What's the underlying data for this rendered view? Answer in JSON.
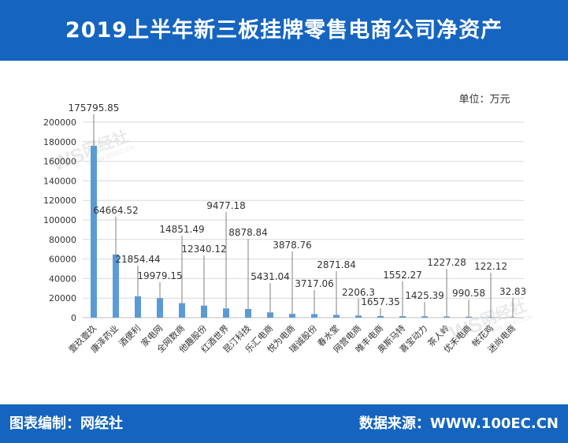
{
  "header": {
    "title": "2019上半年新三板挂牌零售电商公司净资产"
  },
  "footer": {
    "left_text": "图表编制：网经社",
    "right_text": "数据来源：WWW.100EC.CN"
  },
  "watermark": {
    "brand": "网经社",
    "url": "WWW.100EC.CN",
    "logo": "WS"
  },
  "colors": {
    "header_bg": "#1565c0",
    "bar": "#5b9bd5",
    "grid": "#d9d9d9"
  },
  "chart_data": {
    "type": "bar",
    "unit_label": "单位：万元",
    "categories": [
      "壹玖壹玖",
      "康泽药业",
      "酒便利",
      "家电网",
      "全网数商",
      "他趣股份",
      "红酒世界",
      "昆汀科技",
      "乐汇电商",
      "悦为电商",
      "瑞诚股份",
      "春水堂",
      "网营电商",
      "唯丰电商",
      "奥斯马特",
      "喜宝动力",
      "茶人岭",
      "优禾电商",
      "帐花鸡",
      "迷尚电商"
    ],
    "values": [
      175795.85,
      64664.52,
      21854.44,
      19979.15,
      14851.49,
      12340.12,
      9477.18,
      8878.84,
      5431.04,
      3878.76,
      3717.06,
      2871.84,
      2206.3,
      1657.35,
      1552.27,
      1425.39,
      1227.28,
      990.58,
      122.12,
      32.83
    ],
    "value_labels": [
      "175795.85",
      "64664.52",
      "21854.44",
      "19979.15",
      "14851.49",
      "12340.12",
      "9477.18",
      "8878.84",
      "5431.04",
      "3878.76",
      "3717.06",
      "2871.84",
      "2206.3",
      "1657.35",
      "1552.27",
      "1425.39",
      "1227.28",
      "990.58",
      "122.12",
      "32.83"
    ],
    "yticks": [
      "0",
      "20000",
      "40000",
      "60000",
      "80000",
      "100000",
      "120000",
      "140000",
      "160000",
      "180000",
      "200000"
    ],
    "ylim": [
      0,
      200000
    ],
    "grid": true,
    "legend": "none"
  }
}
